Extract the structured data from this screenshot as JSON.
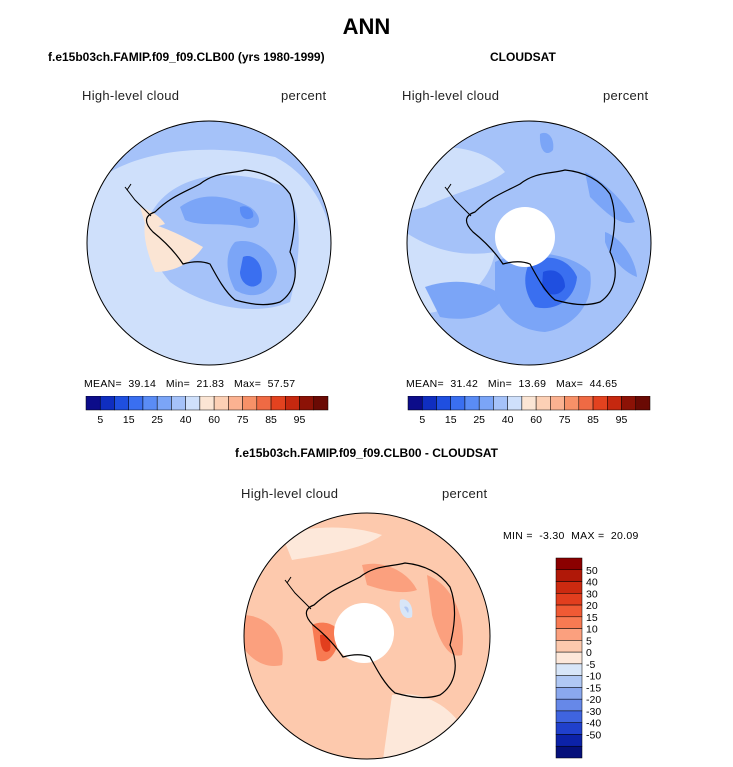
{
  "figure": {
    "title": "ANN",
    "left": {
      "case_title": "f.e15b03ch.FAMIP.f09_f09.CLB00 (yrs 1980-1999)",
      "variable": "High-level cloud",
      "units": "percent",
      "stats": {
        "mean_label": "MEAN=",
        "mean": "39.14",
        "min_label": "Min=",
        "min": "21.83",
        "max_label": "Max=",
        "max": "57.57"
      }
    },
    "right": {
      "case_title": "CLOUDSAT",
      "variable": "High-level cloud",
      "units": "percent",
      "stats": {
        "mean_label": "MEAN=",
        "mean": "31.42",
        "min_label": "Min=",
        "min": "13.69",
        "max_label": "Max=",
        "max": "44.65"
      }
    },
    "diff": {
      "case_title": "f.e15b03ch.FAMIP.f09_f09.CLB00 - CLOUDSAT",
      "variable": "High-level cloud",
      "units": "percent",
      "stats": {
        "min_label": "MIN =",
        "min": "-3.30",
        "max_label": "MAX =",
        "max": "20.09"
      }
    }
  },
  "chart_data": [
    {
      "type": "heatmap",
      "projection": "south-polar-stereographic",
      "title": "f.e15b03ch.FAMIP.f09_f09.CLB00 (yrs 1980-1999)",
      "variable": "High-level cloud",
      "units": "percent",
      "mean": 39.14,
      "min": 21.83,
      "max": 57.57,
      "colorbar": {
        "orientation": "horizontal",
        "levels": [
          5,
          10,
          15,
          20,
          25,
          30,
          35,
          40,
          50,
          60,
          65,
          75,
          80,
          85,
          90,
          95
        ],
        "tick_labels": [
          "5",
          "15",
          "25",
          "40",
          "60",
          "75",
          "85",
          "95"
        ],
        "colors": [
          "#0c0c8a",
          "#0f2ec0",
          "#1f4fe0",
          "#3a6ff0",
          "#5a8cf5",
          "#7ba5f7",
          "#a5c2f9",
          "#cfe0fb",
          "#fbe5d4",
          "#fcd0b5",
          "#fbb291",
          "#f79168",
          "#ef6a44",
          "#e3421f",
          "#c6280f",
          "#8c1206",
          "#6a0a04"
        ]
      }
    },
    {
      "type": "heatmap",
      "projection": "south-polar-stereographic",
      "title": "CLOUDSAT",
      "variable": "High-level cloud",
      "units": "percent",
      "mean": 31.42,
      "min": 13.69,
      "max": 44.65,
      "colorbar": {
        "orientation": "horizontal",
        "levels": [
          5,
          10,
          15,
          20,
          25,
          30,
          35,
          40,
          50,
          60,
          65,
          75,
          80,
          85,
          90,
          95
        ],
        "tick_labels": [
          "5",
          "15",
          "25",
          "40",
          "60",
          "75",
          "85",
          "95"
        ],
        "colors": [
          "#0c0c8a",
          "#0f2ec0",
          "#1f4fe0",
          "#3a6ff0",
          "#5a8cf5",
          "#7ba5f7",
          "#a5c2f9",
          "#cfe0fb",
          "#fbe5d4",
          "#fcd0b5",
          "#fbb291",
          "#f79168",
          "#ef6a44",
          "#e3421f",
          "#c6280f",
          "#8c1206",
          "#6a0a04"
        ]
      }
    },
    {
      "type": "heatmap",
      "projection": "south-polar-stereographic",
      "title": "f.e15b03ch.FAMIP.f09_f09.CLB00 - CLOUDSAT",
      "variable": "High-level cloud",
      "units": "percent",
      "min": -3.3,
      "max": 20.09,
      "colorbar": {
        "orientation": "vertical",
        "tick_labels": [
          "50",
          "40",
          "30",
          "20",
          "15",
          "10",
          "5",
          "0",
          "-5",
          "-10",
          "-15",
          "-20",
          "-30",
          "-40",
          "-50"
        ],
        "colors": [
          "#8b0000",
          "#b01808",
          "#cc2a10",
          "#e23e1e",
          "#f05a34",
          "#f87a52",
          "#fba07e",
          "#fdc9ad",
          "#fde8da",
          "#d8e6f8",
          "#b0c8f4",
          "#8aa8ee",
          "#6688e8",
          "#3f64e0",
          "#2040cc",
          "#0c22a8",
          "#05107a"
        ]
      }
    }
  ]
}
